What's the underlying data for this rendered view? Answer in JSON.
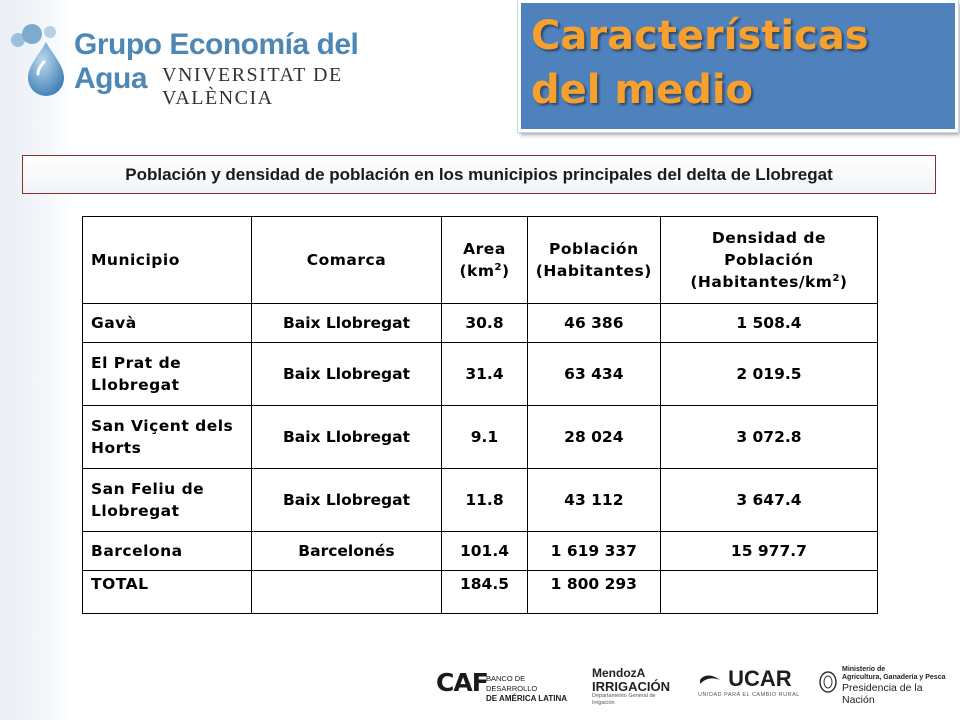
{
  "header": {
    "logo_title": "Grupo Economía del Agua",
    "logo_subtitle": "VNIVERSITAT DE VALÈNCIA",
    "slide_title": "Características del medio"
  },
  "subtitle": "Población y densidad de población en los municipios principales del delta de Llobregat",
  "table": {
    "headers": {
      "municipio": "Municipio",
      "comarca": "Comarca",
      "area_line1": "Area",
      "area_unit": "(km",
      "area_sup": "2",
      "area_close": ")",
      "poblacion_line1": "Población",
      "poblacion_line2": "(Habitantes)",
      "densidad_line1": "Densidad de",
      "densidad_line2": "Población",
      "densidad_line3": "(Habitantes/km",
      "densidad_sup": "2",
      "densidad_close": ")"
    },
    "rows": [
      {
        "municipio": "Gavà",
        "comarca": "Baix Llobregat",
        "area": "30.8",
        "poblacion": "46 386",
        "densidad": "1 508.4"
      },
      {
        "municipio": "El Prat de Llobregat",
        "comarca": "Baix Llobregat",
        "area": "31.4",
        "poblacion": "63 434",
        "densidad": "2 019.5"
      },
      {
        "municipio": "San Viçent dels Horts",
        "comarca": "Baix Llobregat",
        "area": "9.1",
        "poblacion": "28 024",
        "densidad": "3 072.8"
      },
      {
        "municipio": "San Feliu de Llobregat",
        "comarca": "Baix Llobregat",
        "area": "11.8",
        "poblacion": "43 112",
        "densidad": "3 647.4"
      },
      {
        "municipio": "Barcelona",
        "comarca": "Barcelonés",
        "area": "101.4",
        "poblacion": "1 619 337",
        "densidad": "15 977.7"
      },
      {
        "municipio": "TOTAL",
        "comarca": "",
        "area": "184.5",
        "poblacion": "1 800 293",
        "densidad": ""
      }
    ]
  },
  "footer": {
    "caf_mark": "CAF",
    "caf_line1": "BANCO DE DESARROLLO",
    "caf_line2": "DE AMÉRICA LATINA",
    "mendoza_line1": "MendozA",
    "mendoza_line2": "IRRIGACIÓN",
    "mendoza_line3": "Departamento General de Irrigación",
    "ucar_mark": "UCAR",
    "ucar_sub": "UNIDAD PARA EL CAMBIO RURAL",
    "min_line1": "Ministerio de",
    "min_line2": "Agricultura, Ganadería y Pesca",
    "min_line3": "Presidencia de la Nación"
  },
  "colors": {
    "title_box": "#4f81bd",
    "title_text": "#f7a02d",
    "logo_blue": "#4f87b4",
    "banner_border": "#8a2f2f"
  }
}
